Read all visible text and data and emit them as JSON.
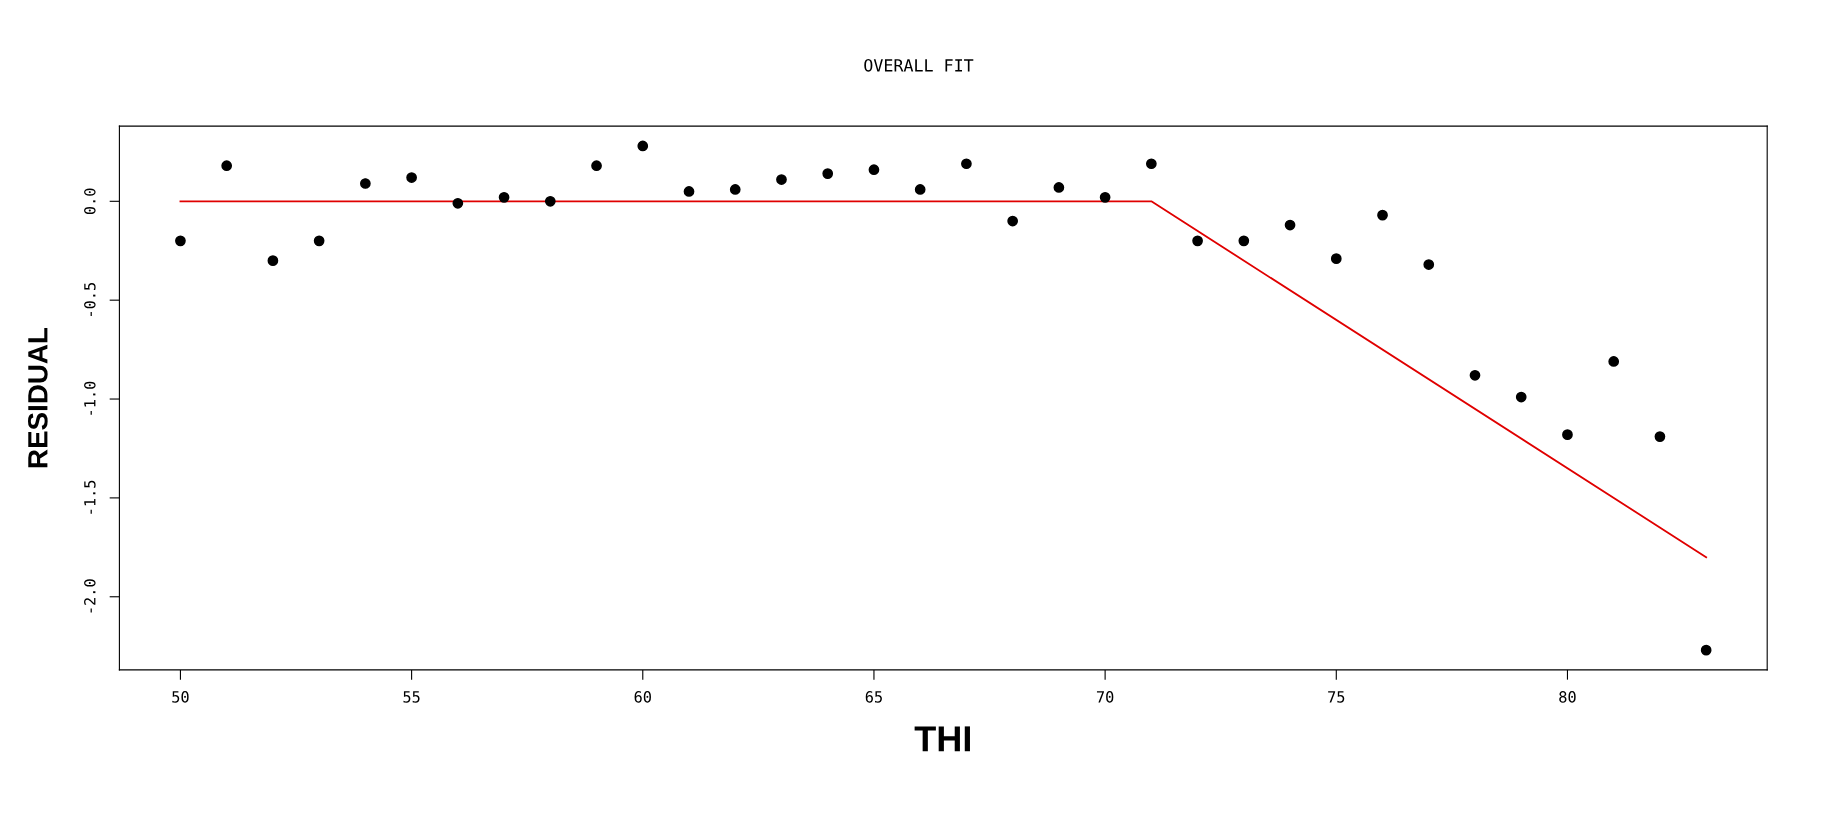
{
  "chart_data": {
    "type": "scatter",
    "title": "OVERALL FIT",
    "xlabel": "THI",
    "ylabel": "RESIDUAL",
    "xlim": [
      48.68,
      84.32
    ],
    "ylim": [
      -2.37,
      0.38
    ],
    "xticks": [
      50,
      55,
      60,
      65,
      70,
      75,
      80
    ],
    "yticks": [
      {
        "value": -2,
        "label": "-2.0"
      },
      -1.5,
      {
        "value": -1,
        "label": "-1.0"
      },
      -0.5,
      {
        "value": 0,
        "label": "0.0"
      }
    ],
    "grid": false,
    "legend": false,
    "series": [
      {
        "marker": "circle",
        "color": "#000000",
        "x": [
          50,
          51,
          52,
          53,
          54,
          55,
          56,
          57,
          58,
          59,
          60,
          61,
          62,
          63,
          64,
          65,
          66,
          67,
          68,
          69,
          70,
          71,
          72,
          73,
          74,
          75,
          76,
          77,
          78,
          79,
          80,
          81,
          82,
          83
        ],
        "values": [
          -0.2,
          0.18,
          -0.3,
          -0.2,
          0.09,
          0.12,
          -0.01,
          0.02,
          0.0,
          0.18,
          0.28,
          0.05,
          0.06,
          0.11,
          0.14,
          0.16,
          0.06,
          0.19,
          -0.1,
          0.07,
          0.02,
          0.19,
          -0.2,
          -0.2,
          -0.12,
          -0.29,
          -0.07,
          -0.32,
          -0.88,
          -0.99,
          -1.18,
          -0.81,
          -1.19,
          -2.27
        ]
      },
      {
        "type": "line",
        "color": "#e00000",
        "line_style": "solid",
        "marker": "none",
        "x": [
          50,
          71,
          83
        ],
        "values": [
          0.0,
          0.0,
          -1.8
        ]
      }
    ]
  }
}
